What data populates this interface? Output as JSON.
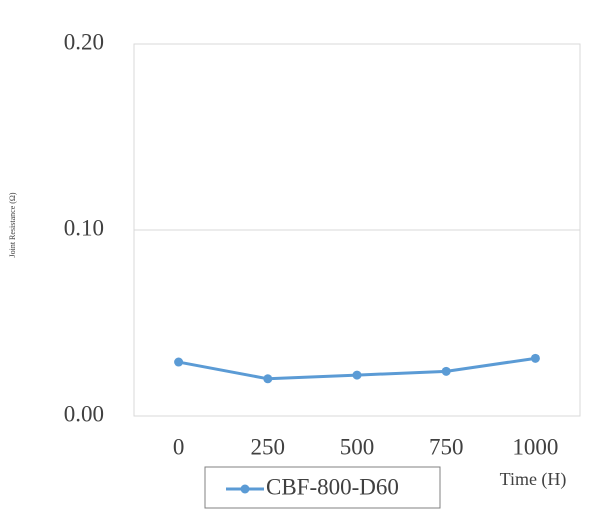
{
  "chart_data": {
    "type": "line",
    "y_label": "Joint Resistance (Ω)",
    "x_label": "Time (H)",
    "categories": [
      "0",
      "250",
      "500",
      "750",
      "1000"
    ],
    "series": [
      {
        "name": "CBF-800-D60",
        "color": "#5b9bd5",
        "values": [
          0.029,
          0.02,
          0.022,
          0.024,
          0.031
        ]
      }
    ],
    "ylim": [
      0,
      0.2
    ],
    "yticks": [
      {
        "value": 0,
        "label": "0.00"
      },
      {
        "value": 0.1,
        "label": "0.10"
      },
      {
        "value": 0.2,
        "label": "0.20"
      }
    ],
    "grid": true,
    "legend": "bottom"
  }
}
